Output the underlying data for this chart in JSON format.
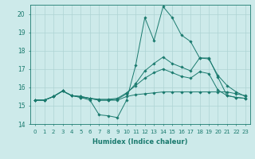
{
  "xlabel": "Humidex (Indice chaleur)",
  "bg_color": "#cdeaea",
  "line_color": "#1a7a6e",
  "grid_color": "#aed4d4",
  "xlim": [
    -0.5,
    23.5
  ],
  "ylim": [
    14,
    20.5
  ],
  "yticks": [
    14,
    15,
    16,
    17,
    18,
    19,
    20
  ],
  "xticks": [
    0,
    1,
    2,
    3,
    4,
    5,
    6,
    7,
    8,
    9,
    10,
    11,
    12,
    13,
    14,
    15,
    16,
    17,
    18,
    19,
    20,
    21,
    22,
    23
  ],
  "series": [
    [
      15.3,
      15.3,
      15.5,
      15.8,
      15.55,
      15.45,
      15.3,
      14.5,
      14.45,
      14.35,
      15.3,
      17.2,
      19.8,
      18.55,
      20.4,
      19.8,
      18.85,
      18.5,
      17.6,
      17.6,
      16.55,
      15.55,
      15.45,
      15.4
    ],
    [
      15.3,
      15.3,
      15.5,
      15.8,
      15.55,
      15.45,
      15.4,
      15.3,
      15.3,
      15.3,
      15.5,
      15.6,
      15.65,
      15.7,
      15.75,
      15.75,
      15.75,
      15.75,
      15.75,
      15.75,
      15.75,
      15.75,
      15.65,
      15.55
    ],
    [
      15.3,
      15.3,
      15.5,
      15.8,
      15.55,
      15.5,
      15.4,
      15.35,
      15.35,
      15.4,
      15.7,
      16.1,
      16.5,
      16.8,
      17.0,
      16.8,
      16.6,
      16.5,
      16.85,
      16.75,
      15.85,
      15.55,
      15.45,
      15.4
    ],
    [
      15.3,
      15.3,
      15.5,
      15.8,
      15.55,
      15.5,
      15.4,
      15.3,
      15.3,
      15.35,
      15.65,
      16.2,
      16.9,
      17.3,
      17.65,
      17.3,
      17.1,
      16.9,
      17.6,
      17.55,
      16.65,
      16.1,
      15.75,
      15.5
    ]
  ]
}
